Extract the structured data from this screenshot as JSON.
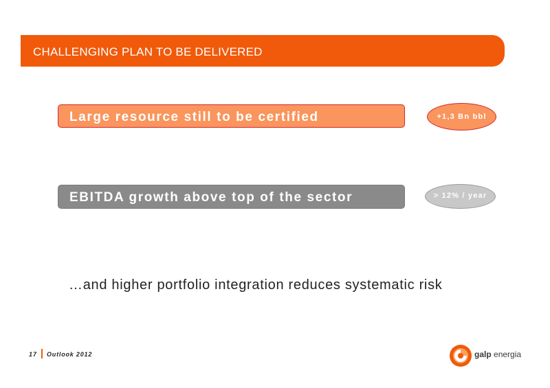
{
  "header": {
    "title": "CHALLENGING PLAN TO BE DELIVERED"
  },
  "items": [
    {
      "statement": "Large resource still to be certified",
      "value": "+1,3 Bn bbl"
    },
    {
      "statement": "EBITDA growth above top of the sector",
      "value": "> 12% / year"
    }
  ],
  "tagline": "…and higher portfolio integration reduces systematic risk",
  "footer": {
    "page_number": "17",
    "label": "Outlook 2012"
  },
  "logo": {
    "brand": "galp",
    "suffix": "energia"
  },
  "colors": {
    "accent": "#f15a0a",
    "light_orange": "#f9955d",
    "grey": "#8a8a8a"
  }
}
